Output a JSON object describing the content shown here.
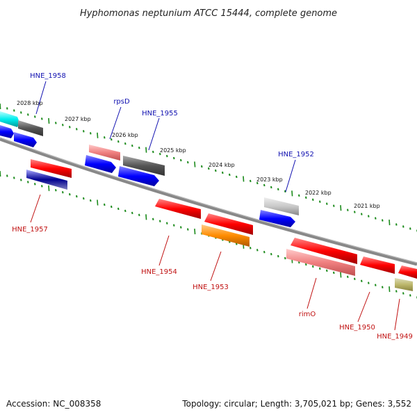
{
  "title": "Hyphomonas neptunium ATCC 15444, complete genome",
  "footer": {
    "accession": "Accession: NC_008358",
    "topology": "Topology: circular; Length: 3,705,021 bp; Genes: 3,552"
  },
  "kbp_labels": [
    "2028 kbp",
    "2027 kbp",
    "2026 kbp",
    "2025 kbp",
    "2024 kbp",
    "2023 kbp",
    "2022 kbp",
    "2021 kbp"
  ],
  "gene_labels": {
    "forward": [
      "HNE_1958",
      "rpsD",
      "HNE_1955",
      "HNE_1952"
    ],
    "reverse": [
      "HNE_1957",
      "HNE_1954",
      "HNE_1953",
      "rimO",
      "HNE_1950",
      "HNE_1949"
    ]
  },
  "colors": {
    "forward_label": "#1010b0",
    "reverse_label": "#c01010",
    "backbone": "#888888",
    "ticks": "#1a8a1a"
  }
}
